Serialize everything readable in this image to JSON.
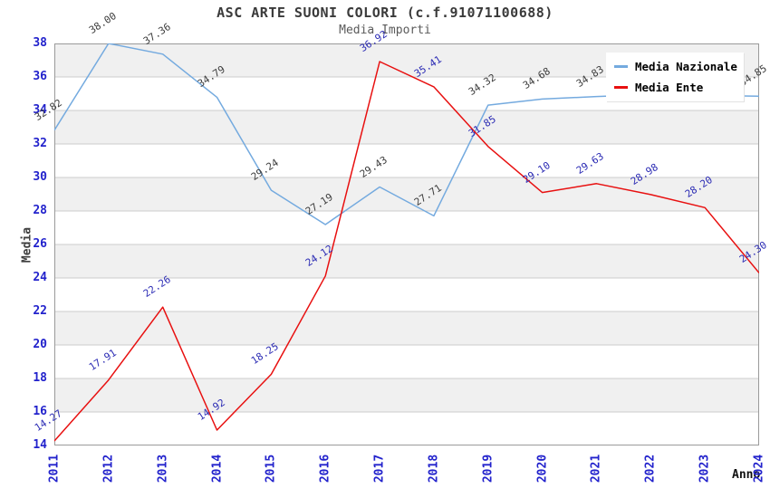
{
  "header": {
    "title": "ASC ARTE SUONI COLORI (c.f.91071100688)",
    "subtitle": "Media Importi"
  },
  "axes": {
    "y_label": "Media",
    "x_label": "Anno",
    "tick_color": "#2222cc",
    "grid_color": "#cccccc",
    "band_color": "#f0f0f0",
    "border_color": "#9a9a9a"
  },
  "legend": {
    "position": "top-right",
    "items": [
      {
        "label": "Media Nazionale",
        "color": "#74aadf"
      },
      {
        "label": "Media Ente",
        "color": "#e81010"
      }
    ]
  },
  "chart_data": {
    "type": "line",
    "title": "ASC ARTE SUONI COLORI (c.f.91071100688)",
    "subtitle": "Media Importi",
    "xlabel": "Anno",
    "ylabel": "Media",
    "ylim": [
      14,
      38
    ],
    "ytick_step": 2,
    "grid": true,
    "alternating_bands": true,
    "legend_position": "top-right",
    "x": [
      2011,
      2012,
      2013,
      2014,
      2015,
      2016,
      2017,
      2018,
      2019,
      2020,
      2021,
      2022,
      2023,
      2024
    ],
    "series": [
      {
        "name": "Media Nazionale",
        "color": "#74aadf",
        "label_color": "#3c3c3c",
        "values": [
          32.82,
          38.0,
          37.36,
          34.79,
          29.24,
          27.19,
          29.43,
          27.71,
          34.32,
          34.68,
          34.83,
          34.95,
          34.9,
          34.85
        ],
        "point_labels": [
          "32.82",
          "38.00",
          "37.36",
          "34.79",
          "29.24",
          "27.19",
          "29.43",
          "27.71",
          "34.32",
          "34.68",
          "34.83",
          "",
          "",
          "34.85"
        ]
      },
      {
        "name": "Media Ente",
        "color": "#e81010",
        "label_color": "#2b2bb4",
        "values": [
          14.27,
          17.91,
          22.26,
          14.92,
          18.25,
          24.12,
          36.92,
          35.41,
          31.85,
          29.1,
          29.63,
          28.98,
          28.2,
          24.3
        ],
        "point_labels": [
          "14.27",
          "17.91",
          "22.26",
          "14.92",
          "18.25",
          "24.12",
          "36.92",
          "35.41",
          "31.85",
          "29.10",
          "29.63",
          "28.98",
          "28.20",
          "24.30"
        ]
      }
    ]
  }
}
